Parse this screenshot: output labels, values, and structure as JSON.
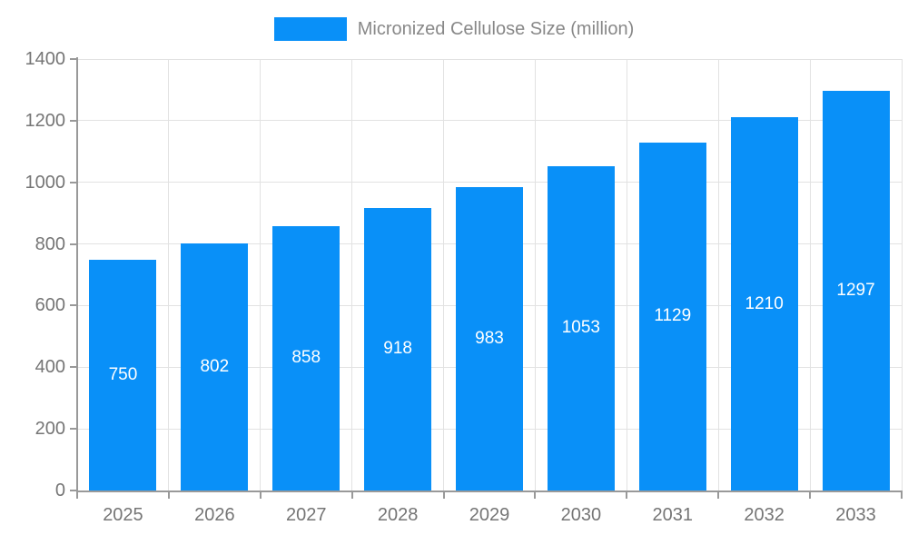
{
  "legend": {
    "label": "Micronized Cellulose Size (million)"
  },
  "colors": {
    "bar": "#0990f8",
    "grid": "#e2e2e2",
    "axis": "#999999",
    "tick_label": "#757575",
    "legend_text": "#888888",
    "value_label": "#ffffff",
    "background": "#ffffff"
  },
  "chart_data": {
    "type": "bar",
    "title": "",
    "xlabel": "",
    "ylabel": "",
    "legend_entries": [
      "Micronized Cellulose Size (million)"
    ],
    "legend_position": "top-center",
    "categories": [
      "2025",
      "2026",
      "2027",
      "2028",
      "2029",
      "2030",
      "2031",
      "2032",
      "2033"
    ],
    "series": [
      {
        "name": "Micronized Cellulose Size (million)",
        "values": [
          750,
          802,
          858,
          918,
          983,
          1053,
          1129,
          1210,
          1297
        ]
      }
    ],
    "value_labels": "inside-center-white",
    "ylim": [
      0,
      1400
    ],
    "ytick_step": 200,
    "yticks": [
      0,
      200,
      400,
      600,
      800,
      1000,
      1200,
      1400
    ],
    "grid": true
  }
}
